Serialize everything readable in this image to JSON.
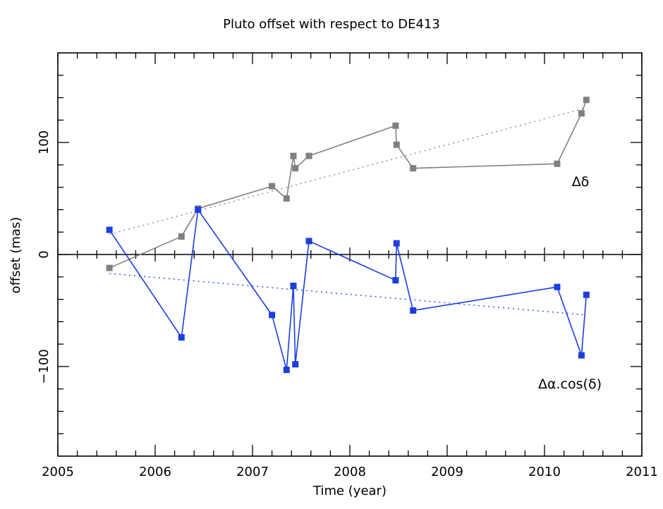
{
  "chart_data": {
    "type": "scatter",
    "title": "Pluto offset with respect to DE413",
    "xlabel": "Time (year)",
    "ylabel": "offset (mas)",
    "xlim": [
      2005,
      2011
    ],
    "ylim": [
      -180,
      180
    ],
    "x_ticks": [
      2005,
      2006,
      2007,
      2008,
      2009,
      2010,
      2011
    ],
    "y_ticks": [
      -100,
      0,
      100
    ],
    "zero_line": true,
    "grid": false,
    "series": [
      {
        "name": "Δδ",
        "color": "#808080",
        "marker": "square",
        "x": [
          2005.53,
          2006.27,
          2006.44,
          2007.2,
          2007.35,
          2007.42,
          2007.44,
          2007.58,
          2008.47,
          2008.48,
          2008.65,
          2010.13,
          2010.38,
          2010.43
        ],
        "y": [
          -12,
          16,
          41,
          61,
          50,
          88,
          77,
          88,
          115,
          98,
          77,
          81,
          126,
          138
        ],
        "trend": {
          "x": [
            2005.53,
            2010.43
          ],
          "y": [
            18,
            131
          ]
        }
      },
      {
        "name": "Δα.cos(δ)",
        "color": "#1a3ee0",
        "marker": "square",
        "x": [
          2005.53,
          2006.27,
          2006.44,
          2007.2,
          2007.35,
          2007.42,
          2007.44,
          2007.58,
          2008.47,
          2008.48,
          2008.65,
          2010.13,
          2010.38,
          2010.43
        ],
        "y": [
          22,
          -74,
          40,
          -54,
          -103,
          -28,
          -98,
          12,
          -23,
          10,
          -50,
          -29,
          -90,
          -36
        ],
        "trend": {
          "x": [
            2005.53,
            2010.43
          ],
          "y": [
            -17,
            -54
          ]
        }
      }
    ]
  }
}
